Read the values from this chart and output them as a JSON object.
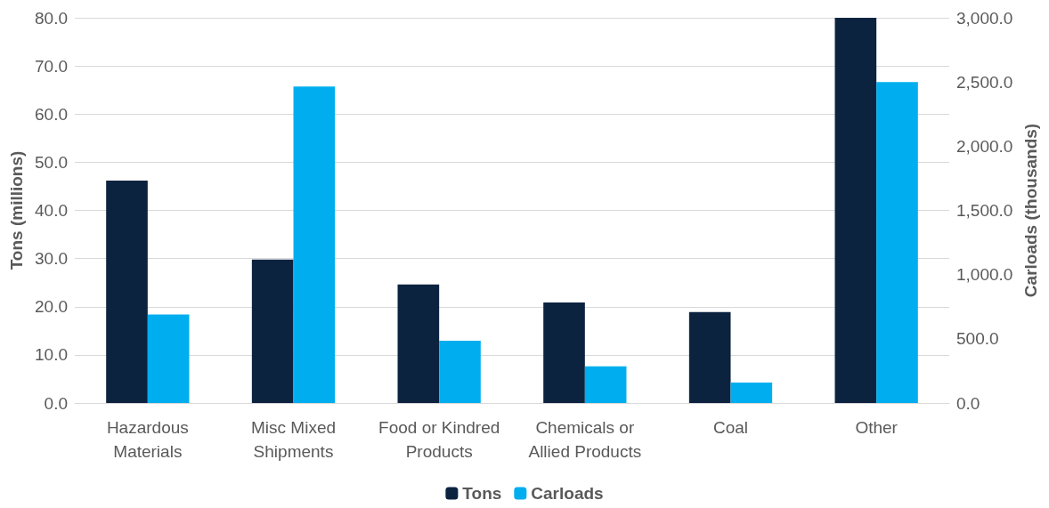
{
  "chart_data": {
    "type": "bar",
    "categories": [
      "Hazardous\nMaterials",
      "Misc Mixed\nShipments",
      "Food or Kindred\nProducts",
      "Chemicals or\nAllied Products",
      "Coal",
      "Other"
    ],
    "series": [
      {
        "name": "Tons",
        "color": "#0c2340",
        "values": [
          46.2,
          29.8,
          24.6,
          20.9,
          18.9,
          80
        ]
      },
      {
        "name": "Carloads",
        "color": "#00aeef",
        "axis": "y2",
        "values": [
          690,
          2465,
          485,
          285,
          160,
          2500
        ]
      }
    ],
    "ylabel": "Tons (millions)",
    "y2label": "Carloads (thousands)",
    "ylim": [
      0,
      80
    ],
    "yticks": [
      {
        "value": 0,
        "label": "0.0"
      },
      {
        "value": 10,
        "label": "10.0"
      },
      {
        "value": 20,
        "label": "20.0"
      },
      {
        "value": 30,
        "label": "30.0"
      },
      {
        "value": 40,
        "label": "40.0"
      },
      {
        "value": 50,
        "label": "50.0"
      },
      {
        "value": 60,
        "label": "60.0"
      },
      {
        "value": 70,
        "label": "70.0"
      },
      {
        "value": 80,
        "label": "80.0"
      }
    ],
    "y2lim": [
      0,
      3000
    ],
    "y2ticks": [
      {
        "value": 0,
        "label": "0.0"
      },
      {
        "value": 500,
        "label": "500.0"
      },
      {
        "value": 1000,
        "label": "1,000.0"
      },
      {
        "value": 1500,
        "label": "1,500.0"
      },
      {
        "value": 2000,
        "label": "2,000.0"
      },
      {
        "value": 2500,
        "label": "2,500.0"
      },
      {
        "value": 3000,
        "label": "3,000.0"
      }
    ],
    "grid": "y",
    "legend": "bottom"
  }
}
